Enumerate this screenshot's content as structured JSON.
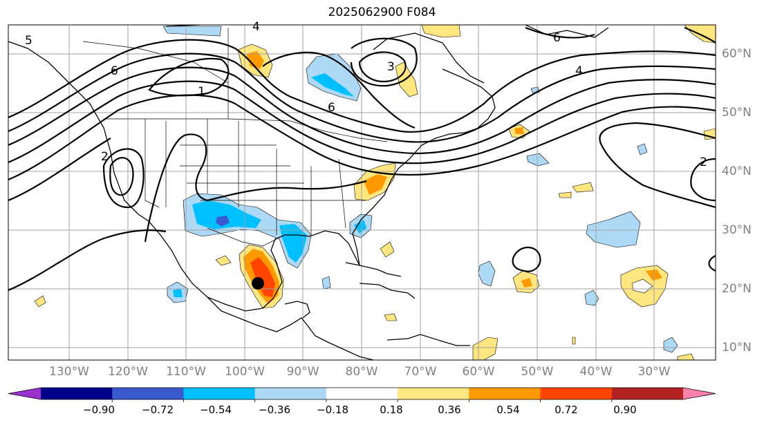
{
  "title": "2025062900 F084",
  "map": {
    "projection": "plate-carree",
    "lon_ticks": [
      {
        "label": "130°W"
      },
      {
        "label": "120°W"
      },
      {
        "label": "110°W"
      },
      {
        "label": "100°W"
      },
      {
        "label": "90°W"
      },
      {
        "label": "80°W"
      },
      {
        "label": "70°W"
      },
      {
        "label": "60°W"
      },
      {
        "label": "50°W"
      },
      {
        "label": "40°W"
      },
      {
        "label": "30°W"
      }
    ],
    "lat_ticks": [
      {
        "label": "60°N"
      },
      {
        "label": "50°N"
      },
      {
        "label": "40°N"
      },
      {
        "label": "30°N"
      },
      {
        "label": "20°N"
      },
      {
        "label": "10°N"
      }
    ],
    "contour_labels": [
      "1",
      "2",
      "3",
      "4",
      "5",
      "6"
    ],
    "storm_marker": "storm-center-dot"
  },
  "colorbar": {
    "colors": [
      "#9932cc",
      "#00008b",
      "#3a5bd0",
      "#00bfff",
      "#add8f6",
      "#ffffff",
      "#ffe680",
      "#ff9900",
      "#ff4500",
      "#b22222",
      "#ff80a8"
    ],
    "tick_labels": [
      "−0.90",
      "−0.72",
      "−0.54",
      "−0.36",
      "−0.18",
      "0.18",
      "0.36",
      "0.54",
      "0.72",
      "0.90"
    ]
  }
}
